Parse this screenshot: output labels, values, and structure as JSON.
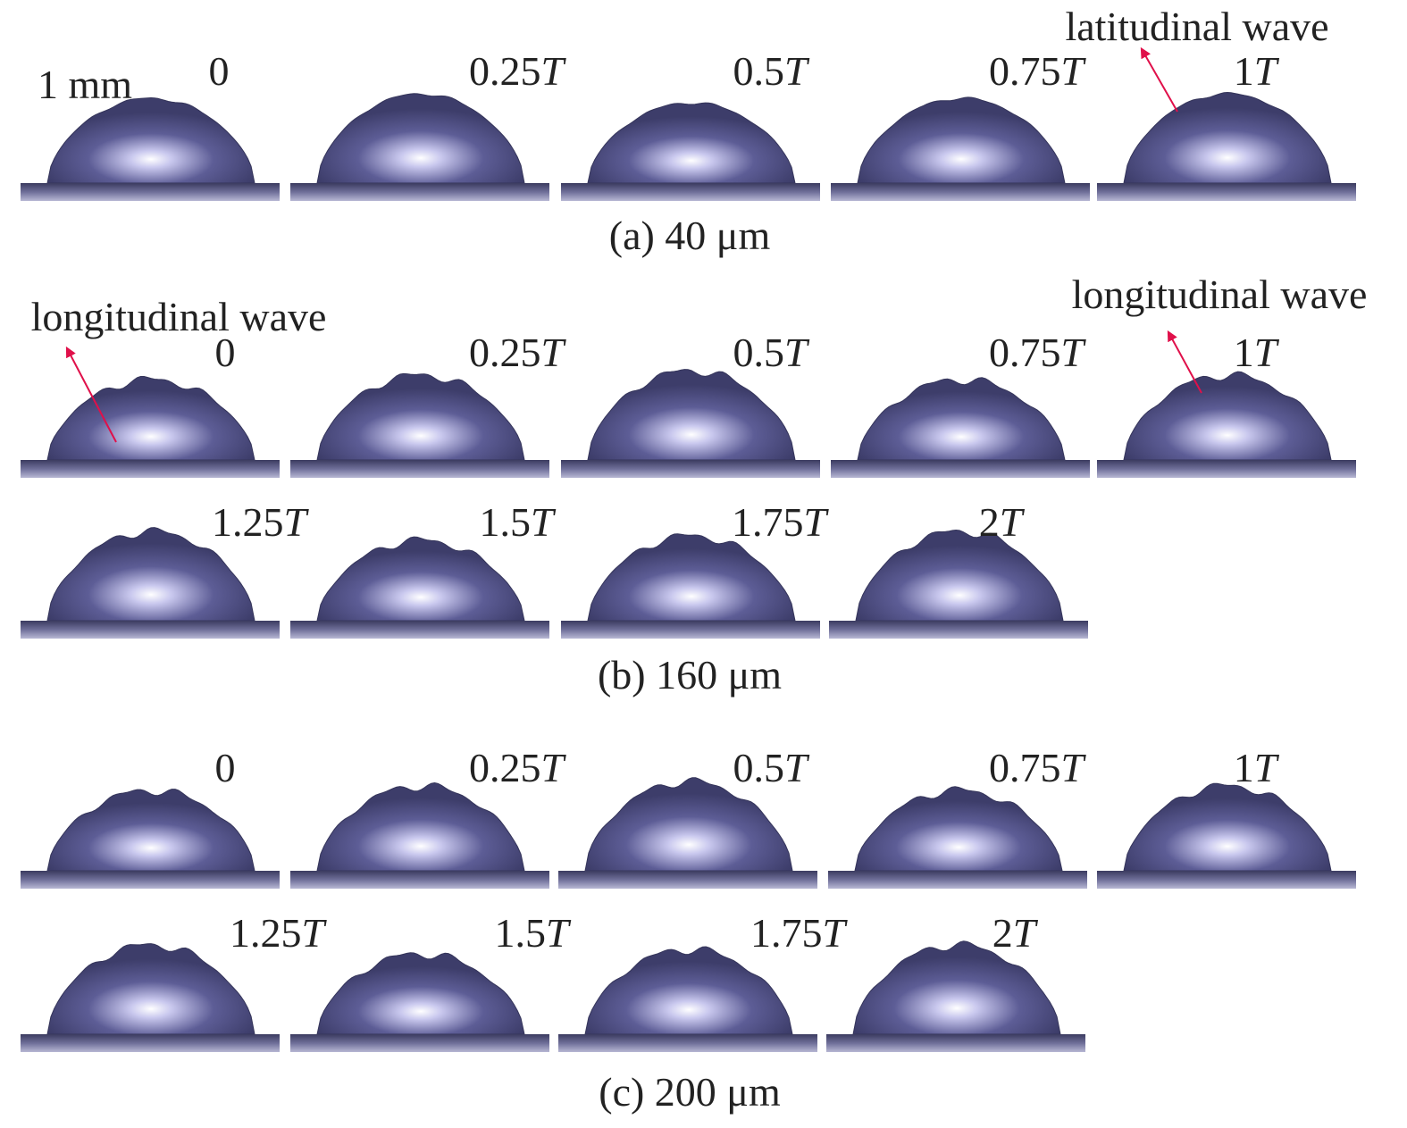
{
  "panels": [
    {
      "caption": "(a) 40 μm",
      "scale_label": "1 mm",
      "annotations": [
        "latitudinal wave"
      ],
      "rows": [
        [
          {
            "label": "0"
          },
          {
            "label": "0.25",
            "italic": "T"
          },
          {
            "label": "0.5",
            "italic": "T"
          },
          {
            "label": "0.75",
            "italic": "T"
          },
          {
            "label": "1",
            "italic": "T"
          }
        ]
      ]
    },
    {
      "caption": "(b) 160 μm",
      "annotations": [
        "longitudinal wave",
        "longitudinal wave"
      ],
      "rows": [
        [
          {
            "label": "0"
          },
          {
            "label": "0.25",
            "italic": "T"
          },
          {
            "label": "0.5",
            "italic": "T"
          },
          {
            "label": "0.75",
            "italic": "T"
          },
          {
            "label": "1",
            "italic": "T"
          }
        ],
        [
          {
            "label": "1.25",
            "italic": "T"
          },
          {
            "label": "1.5",
            "italic": "T"
          },
          {
            "label": "1.75",
            "italic": "T"
          },
          {
            "label": "2",
            "italic": "T"
          }
        ]
      ]
    },
    {
      "caption": "(c) 200 μm",
      "rows": [
        [
          {
            "label": "0"
          },
          {
            "label": "0.25",
            "italic": "T"
          },
          {
            "label": "0.5",
            "italic": "T"
          },
          {
            "label": "0.75",
            "italic": "T"
          },
          {
            "label": "1",
            "italic": "T"
          }
        ],
        [
          {
            "label": "1.25",
            "italic": "T"
          },
          {
            "label": "1.5",
            "italic": "T"
          },
          {
            "label": "1.75",
            "italic": "T"
          },
          {
            "label": "2",
            "italic": "T"
          }
        ]
      ]
    }
  ]
}
